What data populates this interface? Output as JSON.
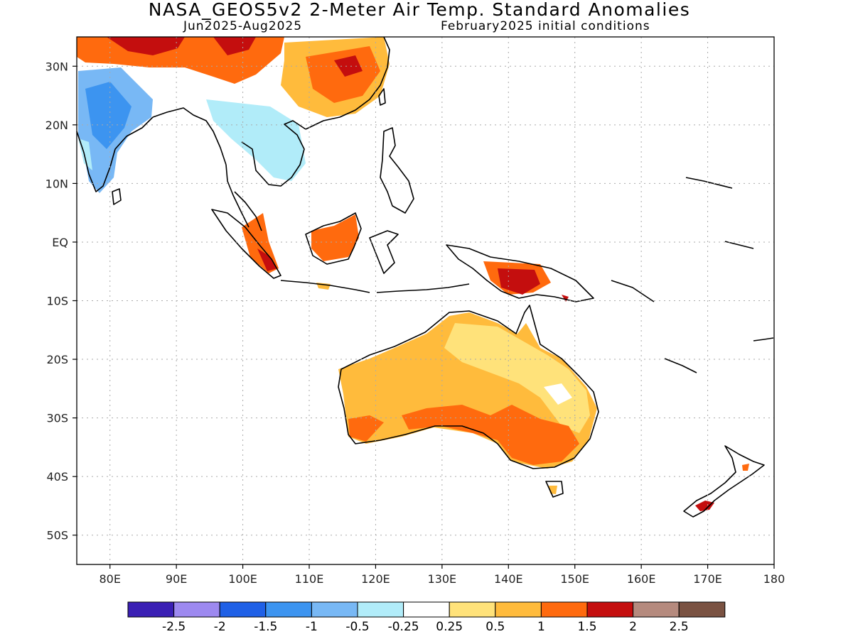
{
  "title": "NASA_GEOS5v2 2-Meter Air Temp. Standard Anomalies",
  "subtitle_left": "Jun2025-Aug2025",
  "subtitle_right": "February2025 initial conditions",
  "axes": {
    "lat_labels": [
      "30N",
      "20N",
      "10N",
      "EQ",
      "10S",
      "20S",
      "30S",
      "40S",
      "50S"
    ],
    "lon_labels": [
      "80E",
      "90E",
      "100E",
      "110E",
      "120E",
      "130E",
      "140E",
      "150E",
      "160E",
      "170E",
      "180"
    ],
    "lon_range": [
      75,
      180
    ],
    "lat_range": [
      -55,
      35
    ],
    "grid": "dotted"
  },
  "colorbar": {
    "colors": [
      "#3a1fb4",
      "#9d89f0",
      "#1f60e6",
      "#3c94f0",
      "#78b8f5",
      "#b1ecf9",
      "#ffffff",
      "#ffe27a",
      "#ffbb3c",
      "#ff6a0e",
      "#c40e0e",
      "#b58a7e",
      "#7a5242"
    ],
    "labels": [
      "-2.5",
      "-2",
      "-1.5",
      "-1",
      "-0.5",
      "-0.25",
      "0.25",
      "0.5",
      "1",
      "1.5",
      "2",
      "2.5"
    ]
  },
  "map_data": {
    "type": "heatmap",
    "variable": "2-Meter Air Temp. Standard Anomalies",
    "regions": [
      {
        "region": "India",
        "lon": [
          75,
          90
        ],
        "lat": [
          8,
          28
        ],
        "anomaly": "-0.5 to -1"
      },
      {
        "region": "Tibet / Himalaya",
        "lon": [
          80,
          100
        ],
        "lat": [
          28,
          35
        ],
        "anomaly": "1 to 2"
      },
      {
        "region": "Eastern China",
        "lon": [
          110,
          122
        ],
        "lat": [
          22,
          35
        ],
        "anomaly": "1 to 2"
      },
      {
        "region": "Indochina",
        "lon": [
          97,
          110
        ],
        "lat": [
          10,
          22
        ],
        "anomaly": "-0.25 to -0.5"
      },
      {
        "region": "Borneo",
        "lon": [
          110,
          118
        ],
        "lat": [
          -3,
          4
        ],
        "anomaly": "1 to 2"
      },
      {
        "region": "Sumatra",
        "lon": [
          100,
          106
        ],
        "lat": [
          -5,
          2
        ],
        "anomaly": "1 to 2"
      },
      {
        "region": "New Guinea",
        "lon": [
          137,
          147
        ],
        "lat": [
          -9,
          -4
        ],
        "anomaly": "1.5 to 2.5"
      },
      {
        "region": "Australia north/central",
        "lon": [
          115,
          150
        ],
        "lat": [
          -28,
          -12
        ],
        "anomaly": "0.25 to 1"
      },
      {
        "region": "Australia south-east",
        "lon": [
          135,
          152
        ],
        "lat": [
          -39,
          -29
        ],
        "anomaly": "1 to 1.5"
      },
      {
        "region": "New Zealand South Island",
        "lon": [
          168,
          172
        ],
        "lat": [
          -46,
          -43
        ],
        "anomaly": "1.5 to 2.5"
      }
    ]
  }
}
